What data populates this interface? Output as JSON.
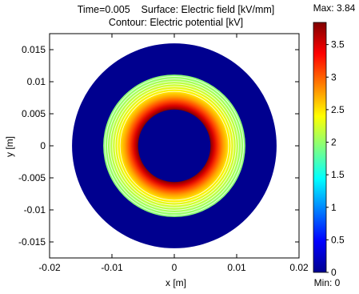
{
  "chart_data": {
    "type": "heatmap",
    "title_line1": "Time=0.005    Surface: Electric field [kV/mm]",
    "title_line2": "Contour: Electric potential [kV]",
    "xlabel": "x [m]",
    "ylabel": "y [m]",
    "xlim": [
      -0.02,
      0.02
    ],
    "ylim": [
      -0.0175,
      0.0175
    ],
    "x_ticks": [
      {
        "value": -0.02,
        "label": "-0.02"
      },
      {
        "value": -0.01,
        "label": "-0.01"
      },
      {
        "value": 0,
        "label": "0"
      },
      {
        "value": 0.01,
        "label": "0.01"
      },
      {
        "value": 0.02,
        "label": "0.02"
      }
    ],
    "y_ticks": [
      {
        "value": 0.015,
        "label": "0.015"
      },
      {
        "value": 0.01,
        "label": "0.01"
      },
      {
        "value": 0.005,
        "label": "0.005"
      },
      {
        "value": 0,
        "label": "0"
      },
      {
        "value": -0.005,
        "label": "-0.005"
      },
      {
        "value": -0.01,
        "label": "-0.01"
      },
      {
        "value": -0.015,
        "label": "-0.015"
      }
    ],
    "geometry": {
      "outer_radius": 0.0164,
      "dielectric_outer_radius": 0.0114,
      "inner_radius": 0.0058
    },
    "field_profile": [
      {
        "r": 0.0058,
        "value": 3.84
      },
      {
        "r": 0.0064,
        "value": 3.5
      },
      {
        "r": 0.0071,
        "value": 3.1
      },
      {
        "r": 0.0079,
        "value": 2.75
      },
      {
        "r": 0.0088,
        "value": 2.45
      },
      {
        "r": 0.0098,
        "value": 2.2
      },
      {
        "r": 0.0106,
        "value": 2.05
      },
      {
        "r": 0.0114,
        "value": 1.95
      }
    ],
    "outside_value": 0,
    "contour_line_radii": [
      0.0087,
      0.0091,
      0.0095,
      0.0099,
      0.0103,
      0.0107,
      0.0111
    ],
    "contour_color": "#ffffff",
    "colorbar": {
      "min": 0,
      "max": 3.84,
      "max_label": "Max: 3.84",
      "min_label": "Min: 0",
      "ticks": [
        {
          "value": 0,
          "label": "0"
        },
        {
          "value": 0.5,
          "label": "0.5"
        },
        {
          "value": 1,
          "label": "1"
        },
        {
          "value": 1.5,
          "label": "1.5"
        },
        {
          "value": 2,
          "label": "2"
        },
        {
          "value": 2.5,
          "label": "2.5"
        },
        {
          "value": 3,
          "label": "3"
        },
        {
          "value": 3.5,
          "label": "3.5"
        }
      ],
      "stops": [
        {
          "t": 0.0,
          "color": "#00008f"
        },
        {
          "t": 0.125,
          "color": "#0000ff"
        },
        {
          "t": 0.375,
          "color": "#00ffff"
        },
        {
          "t": 0.5,
          "color": "#80ff80"
        },
        {
          "t": 0.625,
          "color": "#ffff00"
        },
        {
          "t": 0.875,
          "color": "#ff0000"
        },
        {
          "t": 1.0,
          "color": "#800000"
        }
      ]
    }
  }
}
